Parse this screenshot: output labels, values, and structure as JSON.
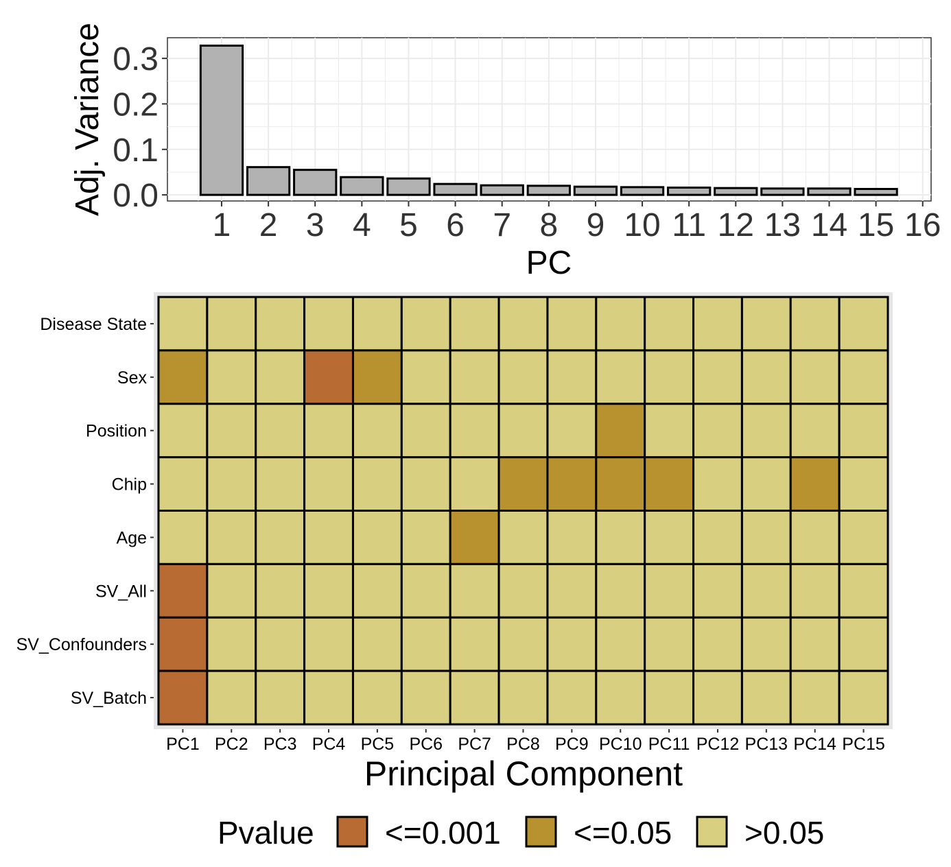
{
  "chart_data": [
    {
      "type": "bar",
      "xlabel": "PC",
      "ylabel": "Adj. Variance",
      "categories": [
        "1",
        "2",
        "3",
        "4",
        "5",
        "6",
        "7",
        "8",
        "9",
        "10",
        "11",
        "12",
        "13",
        "14",
        "15"
      ],
      "x_ticks": [
        "1",
        "2",
        "3",
        "4",
        "5",
        "6",
        "7",
        "8",
        "9",
        "10",
        "11",
        "12",
        "13",
        "14",
        "15",
        "16"
      ],
      "values": [
        0.328,
        0.061,
        0.055,
        0.039,
        0.036,
        0.024,
        0.021,
        0.02,
        0.018,
        0.017,
        0.016,
        0.015,
        0.014,
        0.014,
        0.013
      ],
      "ylim": [
        0,
        0.33
      ],
      "yticks": [
        0.0,
        0.1,
        0.2,
        0.3
      ],
      "ytick_labels": [
        "0.0",
        "0.1",
        "0.2",
        "0.3"
      ],
      "grid": true,
      "bar_color": "#b2b2b2",
      "bar_outline": "#000000"
    },
    {
      "type": "heatmap",
      "xlabel": "Principal Component",
      "ylabel": "",
      "x": [
        "PC1",
        "PC2",
        "PC3",
        "PC4",
        "PC5",
        "PC6",
        "PC7",
        "PC8",
        "PC9",
        "PC10",
        "PC11",
        "PC12",
        "PC13",
        "PC14",
        "PC15"
      ],
      "y": [
        "Disease State",
        "Sex",
        "Position",
        "Chip",
        "Age",
        "SV_All",
        "SV_Confounders",
        "SV_Batch"
      ],
      "values": [
        [
          ">0.05",
          ">0.05",
          ">0.05",
          ">0.05",
          ">0.05",
          ">0.05",
          ">0.05",
          ">0.05",
          ">0.05",
          ">0.05",
          ">0.05",
          ">0.05",
          ">0.05",
          ">0.05",
          ">0.05"
        ],
        [
          "<=0.05",
          ">0.05",
          ">0.05",
          "<=0.001",
          "<=0.05",
          ">0.05",
          ">0.05",
          ">0.05",
          ">0.05",
          ">0.05",
          ">0.05",
          ">0.05",
          ">0.05",
          ">0.05",
          ">0.05"
        ],
        [
          ">0.05",
          ">0.05",
          ">0.05",
          ">0.05",
          ">0.05",
          ">0.05",
          ">0.05",
          ">0.05",
          ">0.05",
          "<=0.05",
          ">0.05",
          ">0.05",
          ">0.05",
          ">0.05",
          ">0.05"
        ],
        [
          ">0.05",
          ">0.05",
          ">0.05",
          ">0.05",
          ">0.05",
          ">0.05",
          ">0.05",
          "<=0.05",
          "<=0.05",
          "<=0.05",
          "<=0.05",
          ">0.05",
          ">0.05",
          "<=0.05",
          ">0.05"
        ],
        [
          ">0.05",
          ">0.05",
          ">0.05",
          ">0.05",
          ">0.05",
          ">0.05",
          "<=0.05",
          ">0.05",
          ">0.05",
          ">0.05",
          ">0.05",
          ">0.05",
          ">0.05",
          ">0.05",
          ">0.05"
        ],
        [
          "<=0.001",
          ">0.05",
          ">0.05",
          ">0.05",
          ">0.05",
          ">0.05",
          ">0.05",
          ">0.05",
          ">0.05",
          ">0.05",
          ">0.05",
          ">0.05",
          ">0.05",
          ">0.05",
          ">0.05"
        ],
        [
          "<=0.001",
          ">0.05",
          ">0.05",
          ">0.05",
          ">0.05",
          ">0.05",
          ">0.05",
          ">0.05",
          ">0.05",
          ">0.05",
          ">0.05",
          ">0.05",
          ">0.05",
          ">0.05",
          ">0.05"
        ],
        [
          "<=0.001",
          ">0.05",
          ">0.05",
          ">0.05",
          ">0.05",
          ">0.05",
          ">0.05",
          ">0.05",
          ">0.05",
          ">0.05",
          ">0.05",
          ">0.05",
          ">0.05",
          ">0.05",
          ">0.05"
        ]
      ],
      "legend": {
        "title": "Pvalue",
        "placement": "bottom",
        "entries": [
          {
            "label": "<=0.001",
            "color": "#b86b32"
          },
          {
            "label": "<=0.05",
            "color": "#b8922e"
          },
          {
            "label": ">0.05",
            "color": "#d9cf80"
          }
        ]
      }
    }
  ]
}
